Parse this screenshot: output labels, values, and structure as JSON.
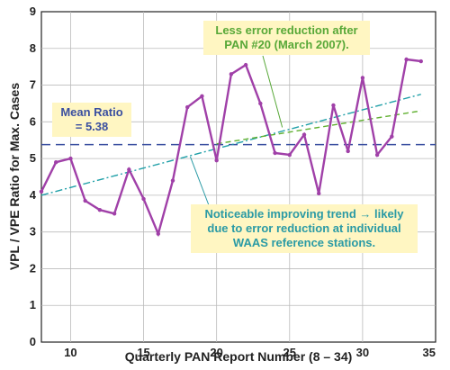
{
  "chart_data": {
    "type": "line",
    "xlabel": "Quarterly PAN Report Number (8 – 34)",
    "ylabel": "VPL / VPE Ratio for Max. Cases",
    "xlim": [
      8,
      35
    ],
    "ylim": [
      0,
      9
    ],
    "xticks": [
      10,
      15,
      20,
      25,
      30,
      35
    ],
    "yticks": [
      0,
      1,
      2,
      3,
      4,
      5,
      6,
      7,
      8,
      9
    ],
    "grid": true,
    "series": [
      {
        "color": "#a040a8",
        "x": [
          8,
          9,
          10,
          11,
          12,
          13,
          14,
          15,
          16,
          17,
          18,
          19,
          20,
          21,
          22,
          23,
          24,
          25,
          26,
          27,
          28,
          29,
          30,
          31,
          32,
          33,
          34
        ],
        "y": [
          4.1,
          4.9,
          5.0,
          3.85,
          3.6,
          3.5,
          4.7,
          3.9,
          2.95,
          4.4,
          6.4,
          6.7,
          4.95,
          7.3,
          7.55,
          6.5,
          5.15,
          5.1,
          5.65,
          4.05,
          6.45,
          5.2,
          7.2,
          5.1,
          5.6,
          7.7,
          7.65
        ]
      }
    ],
    "mean_line": {
      "y": 5.38,
      "color": "#3a4fa0"
    },
    "trend_line": {
      "x": [
        8,
        34
      ],
      "y": [
        4.0,
        6.75
      ],
      "color": "#20a0a8"
    },
    "post_trend_line": {
      "x": [
        20,
        34
      ],
      "y": [
        5.4,
        6.3
      ],
      "color": "#60b030"
    },
    "annotations": {
      "mean": {
        "lines": [
          "Mean Ratio",
          "= 5.38"
        ],
        "color": "#3a4fa0"
      },
      "less_error": {
        "lines": [
          "Less error reduction after",
          "PAN #20 (March 2007)."
        ],
        "color": "#58a838"
      },
      "trend": {
        "lines": [
          "Noticeable improving trend → likely",
          "due to error reduction at individual",
          "WAAS reference stations."
        ],
        "color": "#2a9aa5"
      }
    }
  }
}
